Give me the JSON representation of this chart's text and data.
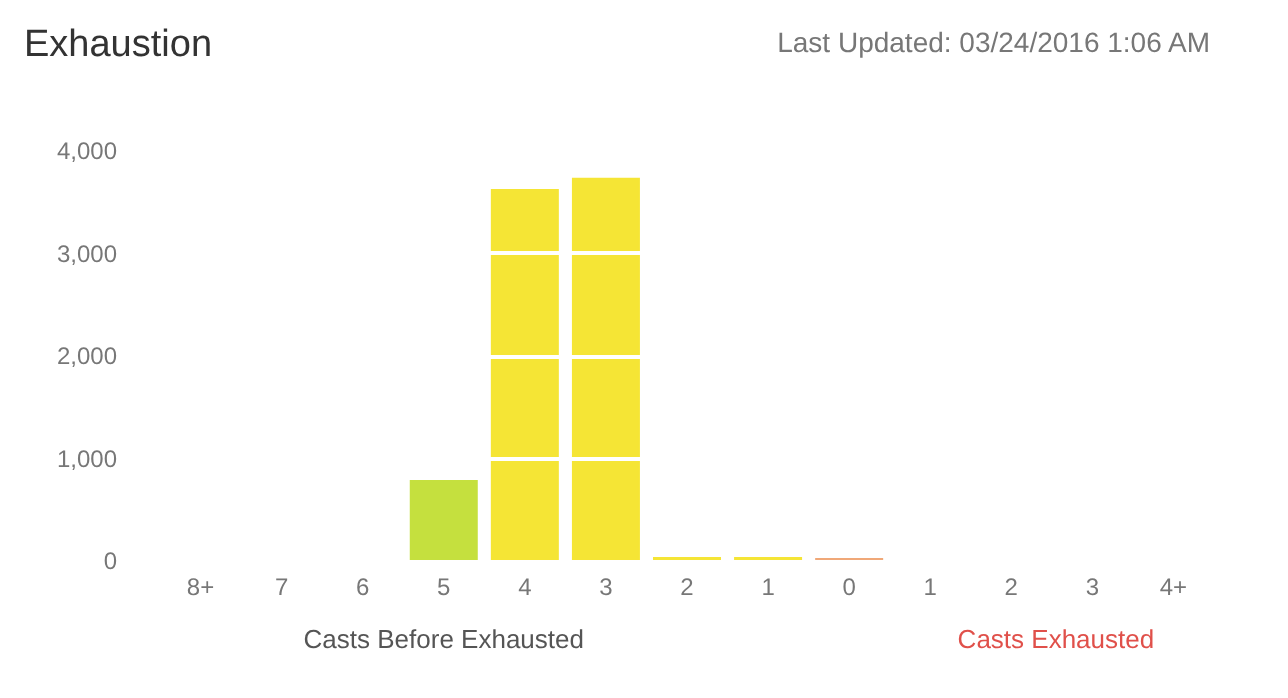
{
  "chart_data": {
    "type": "bar",
    "title": "Exhaustion",
    "subtitle": "Last Updated: 03/24/2016 1:06 AM",
    "xlabel": "Casts Before Exhausted",
    "annotations": [
      "Casts Exhausted"
    ],
    "categories": [
      "8+",
      "7",
      "6",
      "5",
      "4",
      "3",
      "2",
      "1",
      "0",
      "1",
      "2",
      "3",
      "4+"
    ],
    "values": [
      0,
      0,
      0,
      780,
      3620,
      3730,
      30,
      30,
      20,
      0,
      0,
      0,
      0
    ],
    "colors": [
      "#f5e535",
      "#f5e535",
      "#f5e535",
      "#c5e03e",
      "#f5e535",
      "#f5e535",
      "#f5e535",
      "#f5e535",
      "#f0a878",
      "#f5e535",
      "#f5e535",
      "#f5e535",
      "#f5e535"
    ],
    "ylim": [
      0,
      4000
    ],
    "yticks": [
      0,
      {
        "value": 1000,
        "label": "1,000"
      },
      {
        "value": 2000,
        "label": "2,000"
      },
      {
        "value": 3000,
        "label": "3,000"
      },
      {
        "value": 4000,
        "label": "4,000"
      }
    ],
    "grid": "y"
  }
}
